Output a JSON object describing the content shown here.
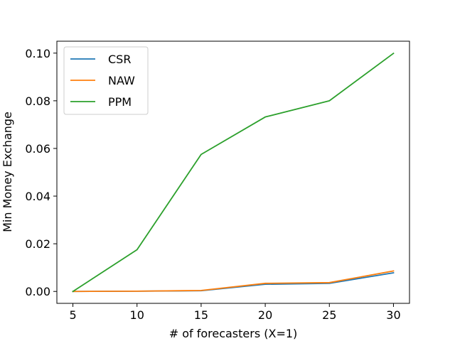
{
  "chart_data": {
    "type": "line",
    "title": "",
    "xlabel": "# of forecasters (X=1)",
    "ylabel": "Min Money Exchange",
    "x": [
      5,
      10,
      15,
      20,
      25,
      30
    ],
    "xticks": [
      5,
      10,
      15,
      20,
      25,
      30
    ],
    "xtick_labels": [
      "5",
      "10",
      "15",
      "20",
      "25",
      "30"
    ],
    "yticks": [
      0.0,
      0.02,
      0.04,
      0.06,
      0.08,
      0.1
    ],
    "ytick_labels": [
      "0.00",
      "0.02",
      "0.04",
      "0.06",
      "0.08",
      "0.10"
    ],
    "xlim": [
      3.75,
      31.25
    ],
    "ylim": [
      -0.005,
      0.105
    ],
    "grid": false,
    "legend_position": "top-left",
    "series": [
      {
        "name": "CSR",
        "color": "#1f77b4",
        "values": [
          0.0,
          0.0001,
          0.0003,
          0.003,
          0.0034,
          0.0078
        ]
      },
      {
        "name": "NAW",
        "color": "#ff7f0e",
        "values": [
          0.0,
          0.0001,
          0.0004,
          0.0034,
          0.0037,
          0.0086
        ]
      },
      {
        "name": "PPM",
        "color": "#2ca02c",
        "values": [
          0.0,
          0.0175,
          0.0575,
          0.0732,
          0.08,
          0.0999
        ]
      }
    ]
  }
}
